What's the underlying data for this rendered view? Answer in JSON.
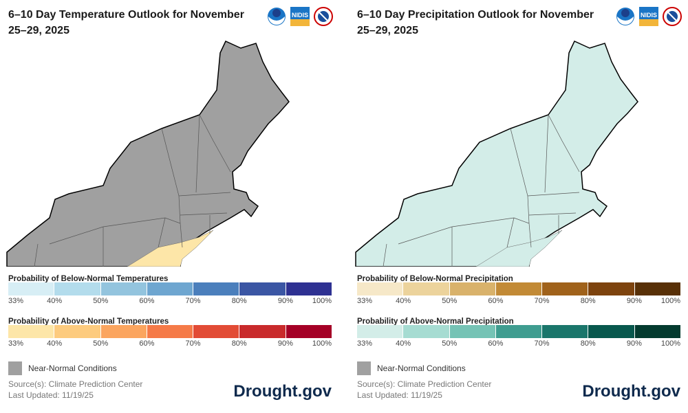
{
  "panels": [
    {
      "title": "6–10 Day Temperature Outlook for November 25–29, 2025",
      "map_fill": "#a0a0a0",
      "patch_fill": "#fde6a8",
      "legend_below": {
        "title": "Probability of Below-Normal Temperatures",
        "colors": [
          "#d7eef5",
          "#b3dcec",
          "#93c4de",
          "#6ea6d0",
          "#4b7fbc",
          "#3b56a4",
          "#2e3192"
        ]
      },
      "legend_above": {
        "title": "Probability of Above-Normal Temperatures",
        "colors": [
          "#fde6a8",
          "#fdcb7e",
          "#fba55f",
          "#f57a48",
          "#e24b35",
          "#c92a2b",
          "#a50026"
        ]
      }
    },
    {
      "title": "6–10 Day Precipitation Outlook for November 25–29, 2025",
      "map_fill": "#d3ede8",
      "patch_fill": "#d3ede8",
      "legend_below": {
        "title": "Probability of Below-Normal Precipitation",
        "colors": [
          "#f6e8c8",
          "#ecd39c",
          "#d9b26b",
          "#c28a36",
          "#a0621b",
          "#7d430e",
          "#583007"
        ]
      },
      "legend_above": {
        "title": "Probability of Above-Normal Precipitation",
        "colors": [
          "#d3ede8",
          "#a6dcd2",
          "#75c3b5",
          "#3f9d90",
          "#1a766b",
          "#08584d",
          "#043b2f"
        ]
      }
    }
  ],
  "ticks": [
    "33%",
    "40%",
    "50%",
    "60%",
    "70%",
    "80%",
    "90%",
    "100%"
  ],
  "near_normal": "Near-Normal Conditions",
  "source": "Source(s): Climate Prediction Center",
  "updated": "Last Updated: 11/19/25",
  "brand": "Drought.gov",
  "logos": [
    "NOAA",
    "NIDIS",
    "National Weather Service"
  ]
}
